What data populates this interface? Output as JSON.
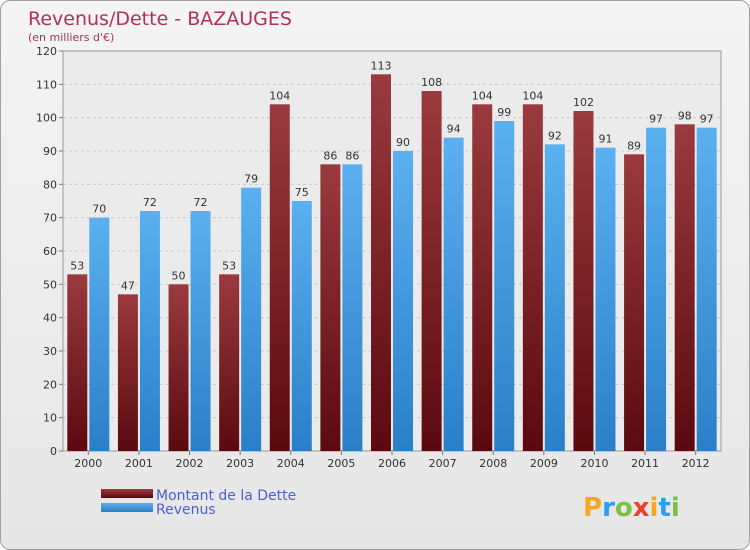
{
  "chart_data": {
    "type": "bar",
    "title": "Revenus/Dette - BAZAUGES",
    "subtitle": "(en milliers d'€)",
    "categories": [
      "2000",
      "2001",
      "2002",
      "2003",
      "2004",
      "2005",
      "2006",
      "2007",
      "2008",
      "2009",
      "2010",
      "2011",
      "2012"
    ],
    "series": [
      {
        "name": "Montant de la Dette",
        "values": [
          53,
          47,
          50,
          53,
          104,
          86,
          113,
          108,
          104,
          104,
          102,
          89,
          98
        ],
        "color": "#7a1a1f"
      },
      {
        "name": "Revenus",
        "values": [
          70,
          72,
          72,
          79,
          75,
          86,
          90,
          94,
          99,
          92,
          91,
          97,
          97
        ],
        "color": "#4ea2e6"
      }
    ],
    "ylim": [
      0,
      120
    ],
    "yticks": [
      0,
      10,
      20,
      30,
      40,
      50,
      60,
      70,
      80,
      90,
      100,
      110,
      120
    ],
    "grid": true,
    "legend_position": "bottom-left"
  },
  "logo": {
    "letters": [
      "P",
      "r",
      "o",
      "x",
      "i",
      "t",
      "i"
    ],
    "colors": [
      "#f5a623",
      "#2a9df4",
      "#7bc043",
      "#e8412c",
      "#f5a623",
      "#2a9df4",
      "#7bc043"
    ]
  }
}
